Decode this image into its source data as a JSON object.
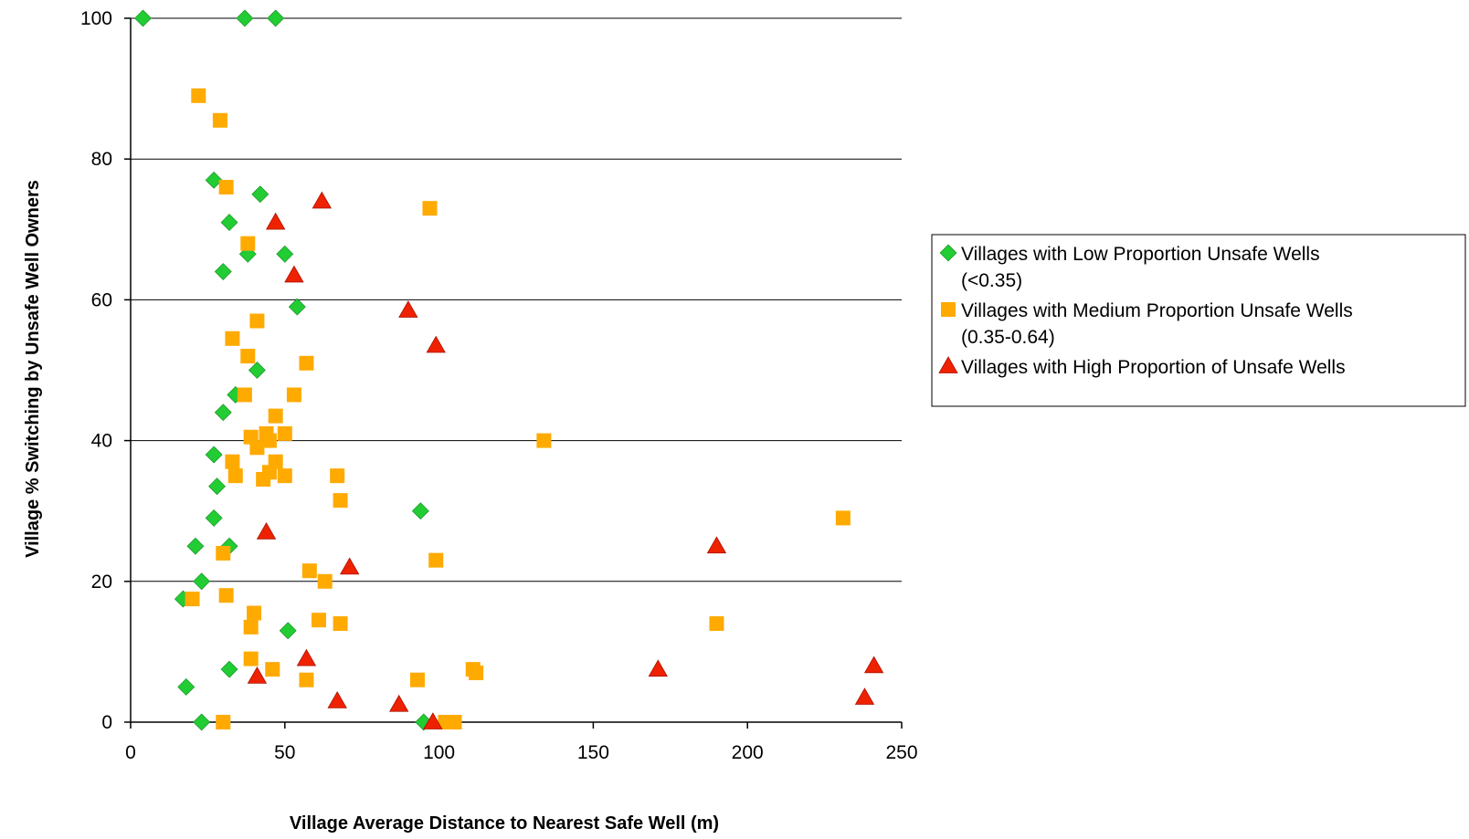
{
  "chart_data": {
    "type": "scatter",
    "title": "",
    "xlabel": "Village Average Distance to Nearest Safe Well (m)",
    "ylabel": "Village % Switching by Unsafe Well Owners",
    "xlim": [
      0,
      250
    ],
    "ylim": [
      0,
      100
    ],
    "x_ticks": [
      0,
      50,
      100,
      150,
      200,
      250
    ],
    "y_ticks": [
      0,
      20,
      40,
      60,
      80,
      100
    ],
    "grid": "horizontal major gridlines",
    "legend_position": "right",
    "series": [
      {
        "name": "Villages with Low Proportion Unsafe Wells (<0.35)",
        "legend_lines": [
          "Villages with Low Proportion Unsafe Wells",
          "(<0.35)"
        ],
        "marker": "diamond",
        "color": "#22cc33",
        "points": [
          [
            4,
            100
          ],
          [
            37,
            100
          ],
          [
            47,
            100
          ],
          [
            27,
            77
          ],
          [
            42,
            75
          ],
          [
            32,
            71
          ],
          [
            38,
            66.5
          ],
          [
            50,
            66.5
          ],
          [
            30,
            64
          ],
          [
            54,
            59
          ],
          [
            41,
            50
          ],
          [
            34,
            46.5
          ],
          [
            30,
            44
          ],
          [
            27,
            38
          ],
          [
            28,
            33.5
          ],
          [
            27,
            29
          ],
          [
            94,
            30
          ],
          [
            21,
            25
          ],
          [
            32,
            25
          ],
          [
            23,
            20
          ],
          [
            17,
            17.5
          ],
          [
            51,
            13
          ],
          [
            32,
            7.5
          ],
          [
            18,
            5
          ],
          [
            23,
            0
          ],
          [
            95,
            0
          ]
        ]
      },
      {
        "name": "Villages with Medium Proportion Unsafe Wells (0.35-0.64)",
        "legend_lines": [
          "Villages with Medium Proportion Unsafe Wells",
          "(0.35-0.64)"
        ],
        "marker": "square",
        "color": "#ffaa00",
        "points": [
          [
            22,
            89
          ],
          [
            29,
            85.5
          ],
          [
            31,
            76
          ],
          [
            97,
            73
          ],
          [
            38,
            68
          ],
          [
            41,
            57
          ],
          [
            33,
            54.5
          ],
          [
            38,
            52
          ],
          [
            57,
            51
          ],
          [
            37,
            46.5
          ],
          [
            53,
            46.5
          ],
          [
            47,
            43.5
          ],
          [
            39,
            40.5
          ],
          [
            44,
            41
          ],
          [
            45,
            40
          ],
          [
            50,
            41
          ],
          [
            41,
            39
          ],
          [
            33,
            37
          ],
          [
            47,
            37
          ],
          [
            34,
            35
          ],
          [
            45,
            35.5
          ],
          [
            50,
            35
          ],
          [
            43,
            34.5
          ],
          [
            67,
            35
          ],
          [
            68,
            31.5
          ],
          [
            134,
            40
          ],
          [
            231,
            29
          ],
          [
            30,
            24
          ],
          [
            99,
            23
          ],
          [
            58,
            21.5
          ],
          [
            63,
            20
          ],
          [
            31,
            18
          ],
          [
            20,
            17.5
          ],
          [
            40,
            15.5
          ],
          [
            39,
            13.5
          ],
          [
            61,
            14.5
          ],
          [
            68,
            14
          ],
          [
            190,
            14
          ],
          [
            39,
            9
          ],
          [
            46,
            7.5
          ],
          [
            57,
            6
          ],
          [
            93,
            6
          ],
          [
            111,
            7.5
          ],
          [
            112,
            7
          ],
          [
            30,
            0
          ],
          [
            102,
            0
          ],
          [
            105,
            0
          ]
        ]
      },
      {
        "name": "Villages with High Proportion of Unsafe Wells",
        "legend_lines": [
          "Villages with High Proportion of Unsafe Wells"
        ],
        "marker": "triangle",
        "color": "#ee2200",
        "points": [
          [
            62,
            74
          ],
          [
            47,
            71
          ],
          [
            53,
            63.5
          ],
          [
            90,
            58.5
          ],
          [
            99,
            53.5
          ],
          [
            44,
            27
          ],
          [
            71,
            22
          ],
          [
            190,
            25
          ],
          [
            57,
            9
          ],
          [
            41,
            6.5
          ],
          [
            67,
            3
          ],
          [
            87,
            2.5
          ],
          [
            98,
            0
          ],
          [
            171,
            7.5
          ],
          [
            241,
            8
          ],
          [
            238,
            3.5
          ]
        ]
      }
    ]
  }
}
